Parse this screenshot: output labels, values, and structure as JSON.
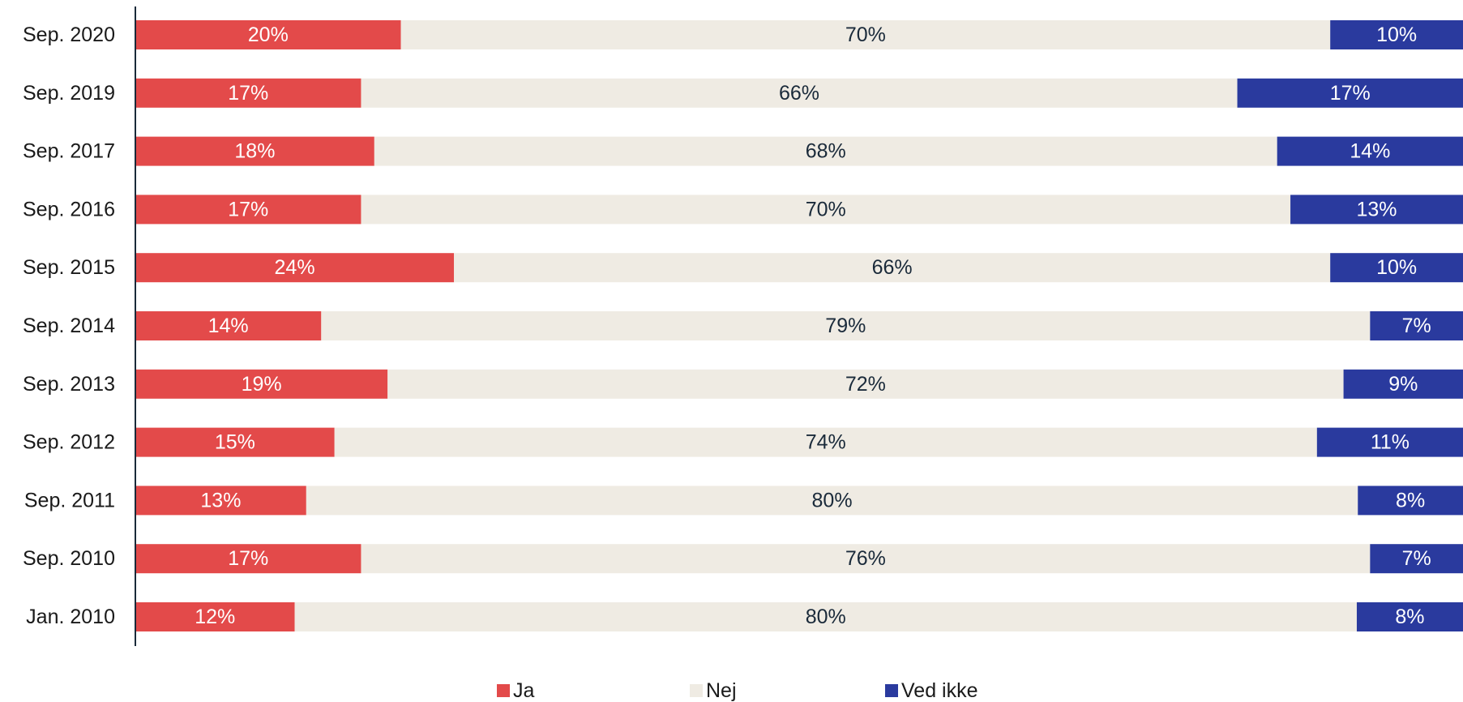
{
  "chart_data": {
    "type": "bar",
    "orientation": "horizontal",
    "stacked": "100%",
    "categories": [
      "Sep. 2020",
      "Sep. 2019",
      "Sep. 2017",
      "Sep. 2016",
      "Sep. 2015",
      "Sep. 2014",
      "Sep. 2013",
      "Sep. 2012",
      "Sep. 2011",
      "Sep. 2010",
      "Jan. 2010"
    ],
    "series": [
      {
        "name": "Ja",
        "color": "#e34a4a",
        "label_color": "#ffffff",
        "values": [
          20,
          17,
          18,
          17,
          24,
          14,
          19,
          15,
          13,
          17,
          12
        ]
      },
      {
        "name": "Nej",
        "color": "#efebe3",
        "label_color": "#1a2a3a",
        "values": [
          70,
          66,
          68,
          70,
          66,
          79,
          72,
          74,
          80,
          76,
          80
        ]
      },
      {
        "name": "Ved ikke",
        "color": "#2a3a9e",
        "label_color": "#ffffff",
        "values": [
          10,
          17,
          14,
          13,
          10,
          7,
          9,
          11,
          8,
          7,
          8
        ]
      }
    ],
    "data_labels": [
      [
        "20%",
        "70%",
        "10%"
      ],
      [
        "17%",
        "66%",
        "17%"
      ],
      [
        "18%",
        "68%",
        "14%"
      ],
      [
        "17%",
        "70%",
        "13%"
      ],
      [
        "24%",
        "66%",
        "10%"
      ],
      [
        "14%",
        "79%",
        "7%"
      ],
      [
        "19%",
        "72%",
        "9%"
      ],
      [
        "15%",
        "74%",
        "11%"
      ],
      [
        "13%",
        "80%",
        "8%"
      ],
      [
        "17%",
        "76%",
        "7%"
      ],
      [
        "12%",
        "80%",
        "8%"
      ]
    ],
    "xlim": [
      0,
      100
    ],
    "grid": false,
    "legend_position": "bottom",
    "axis_color": "#1a2a3a"
  }
}
